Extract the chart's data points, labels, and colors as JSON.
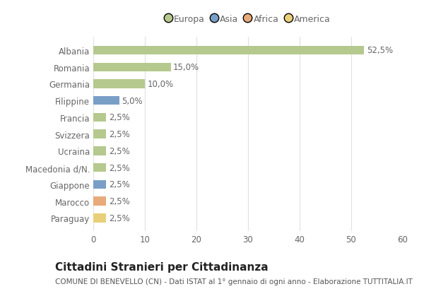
{
  "countries": [
    "Albania",
    "Romania",
    "Germania",
    "Filippine",
    "Francia",
    "Svizzera",
    "Ucraina",
    "Macedonia d/N.",
    "Giappone",
    "Marocco",
    "Paraguay"
  ],
  "values": [
    52.5,
    15.0,
    10.0,
    5.0,
    2.5,
    2.5,
    2.5,
    2.5,
    2.5,
    2.5,
    2.5
  ],
  "colors": [
    "#b5c98e",
    "#b5c98e",
    "#b5c98e",
    "#7a9fc7",
    "#b5c98e",
    "#b5c98e",
    "#b5c98e",
    "#b5c98e",
    "#7a9fc7",
    "#e8aa7a",
    "#e8d07a"
  ],
  "legend_labels": [
    "Europa",
    "Asia",
    "Africa",
    "America"
  ],
  "legend_colors": [
    "#b5c98e",
    "#7a9fc7",
    "#e8aa7a",
    "#e8d07a"
  ],
  "title": "Cittadini Stranieri per Cittadinanza",
  "subtitle": "COMUNE DI BENEVELLO (CN) - Dati ISTAT al 1° gennaio di ogni anno - Elaborazione TUTTITALIA.IT",
  "xlabel_ticks": [
    0,
    10,
    20,
    30,
    40,
    50,
    60
  ],
  "xlim": [
    0,
    60
  ],
  "background_color": "#ffffff",
  "grid_color": "#e0e0e0",
  "title_fontsize": 11,
  "subtitle_fontsize": 7.5,
  "label_fontsize": 8.5,
  "tick_fontsize": 8.5,
  "legend_fontsize": 9,
  "bar_height": 0.52
}
